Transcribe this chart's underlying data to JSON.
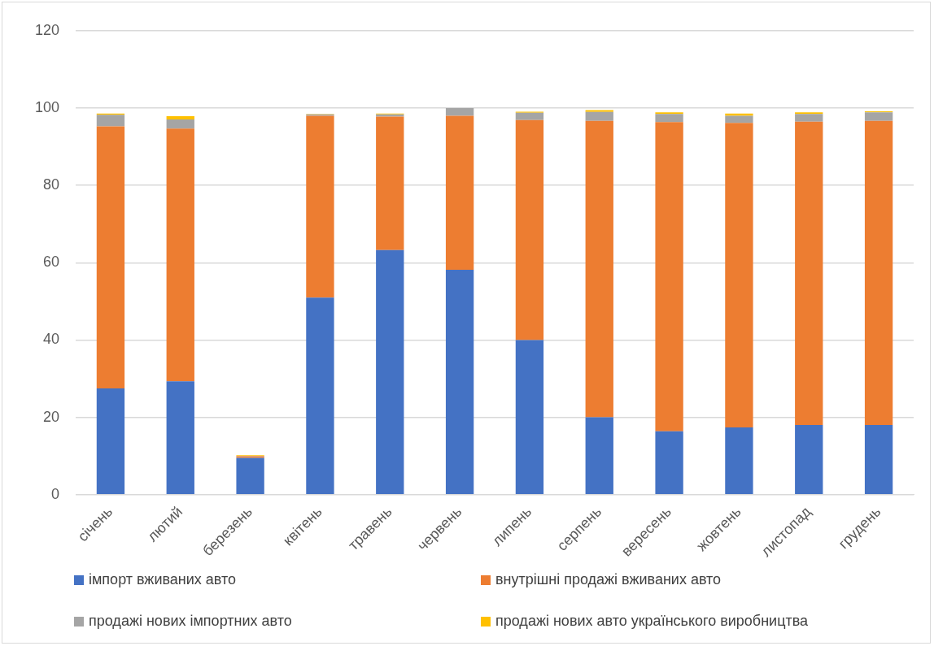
{
  "chart_data": {
    "type": "bar",
    "stacked": true,
    "categories": [
      "січень",
      "лютий",
      "березень",
      "квітень",
      "травень",
      "червень",
      "липень",
      "серпень",
      "вересень",
      "жовтень",
      "листопад",
      "грудень"
    ],
    "series": [
      {
        "name": "імпорт вживаних авто",
        "color": "#4472c4",
        "values": [
          27.5,
          29.3,
          9.5,
          51,
          63.3,
          58.2,
          40,
          20,
          16.4,
          17.4,
          18,
          18
        ]
      },
      {
        "name": "внутрішні продажі вживаних авто",
        "color": "#ed7d31",
        "values": [
          67.8,
          65.4,
          0.4,
          47,
          34.5,
          39.8,
          56.9,
          76.7,
          80,
          78.8,
          78.5,
          78.7
        ]
      },
      {
        "name": "продажі нових імпортних авто",
        "color": "#a5a5a5",
        "values": [
          3,
          2.4,
          0.1,
          0.4,
          0.6,
          2,
          1.9,
          2.3,
          2.1,
          1.8,
          2,
          2.2
        ]
      },
      {
        "name": "продажі нових авто українського виробництва",
        "color": "#ffc000",
        "values": [
          0.3,
          0.8,
          0.2,
          0.1,
          0.2,
          null,
          0.3,
          0.5,
          0.4,
          0.6,
          0.4,
          0.3
        ]
      }
    ],
    "ylim": [
      0,
      120
    ],
    "yticks": [
      0,
      20,
      40,
      60,
      80,
      100,
      120
    ],
    "grid": "y",
    "legend": "bottom"
  }
}
